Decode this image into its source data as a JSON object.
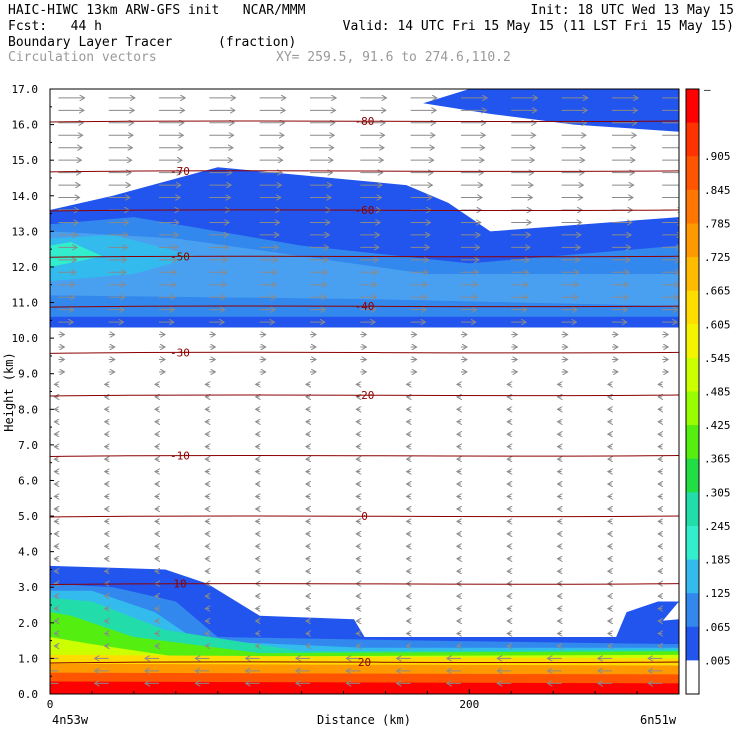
{
  "header": {
    "line1_left": "HAIC-HIWC 13km ARW-GFS init   NCAR/MMM",
    "line1_right": "Init: 18 UTC Wed 13 May 15",
    "line2_left": "Fcst:   44 h",
    "line2_right": "Valid: 14 UTC Fri 15 May 15 (11 LST Fri 15 May 15)",
    "line3_left": "Boundary Layer Tracer",
    "line3_mid": "(fraction)",
    "line4_left": "Circulation vectors",
    "line4_mid": "XY= 259.5, 91.6 to 274.6,110.2"
  },
  "chart_data": {
    "type": "heatmap",
    "ylabel": "Height (km)",
    "xlabel": "Distance (km)",
    "ylim": [
      0,
      17
    ],
    "xlim": [
      0,
      300
    ],
    "y_ticks": [
      "0.0",
      "1.0",
      "2.0",
      "3.0",
      "4.0",
      "5.0",
      "6.0",
      "7.0",
      "8.0",
      "9.0",
      "10.0",
      "11.0",
      "12.0",
      "13.0",
      "14.0",
      "15.0",
      "16.0",
      "17.0"
    ],
    "x_ticks": [
      {
        "value": 0,
        "label": "0"
      },
      {
        "value": 200,
        "label": "200"
      }
    ],
    "x_endpoints": {
      "left": "4n53w",
      "right": "6n51w"
    },
    "colorbar_labels": [
      "–",
      ".905",
      ".845",
      ".785",
      ".725",
      ".665",
      ".605",
      ".545",
      ".485",
      ".425",
      ".365",
      ".305",
      ".245",
      ".185",
      ".125",
      ".065",
      ".005"
    ],
    "colorbar_colors": [
      "#ff0000",
      "#ff3300",
      "#ff5500",
      "#ff7700",
      "#ff9900",
      "#ffbb00",
      "#ffdd00",
      "#f4f400",
      "#ccff00",
      "#99ff00",
      "#55ee11",
      "#22dd44",
      "#22ddaa",
      "#33eecc",
      "#33bbee",
      "#3388ee",
      "#2255ee",
      "#ffffff"
    ],
    "isotherms": [
      {
        "label": "20",
        "height": 0.9
      },
      {
        "label": "10",
        "height": 3.1
      },
      {
        "label": "0",
        "height": 5.0
      },
      {
        "label": "-10",
        "height": 6.7
      },
      {
        "label": "-20",
        "height": 8.4
      },
      {
        "label": "-30",
        "height": 9.6
      },
      {
        "label": "-40",
        "height": 10.9
      },
      {
        "label": "-50",
        "height": 12.3
      },
      {
        "label": "-60",
        "height": 13.6
      },
      {
        "label": "-70",
        "height": 14.7
      },
      {
        "label": "-80",
        "height": 16.1
      }
    ]
  }
}
